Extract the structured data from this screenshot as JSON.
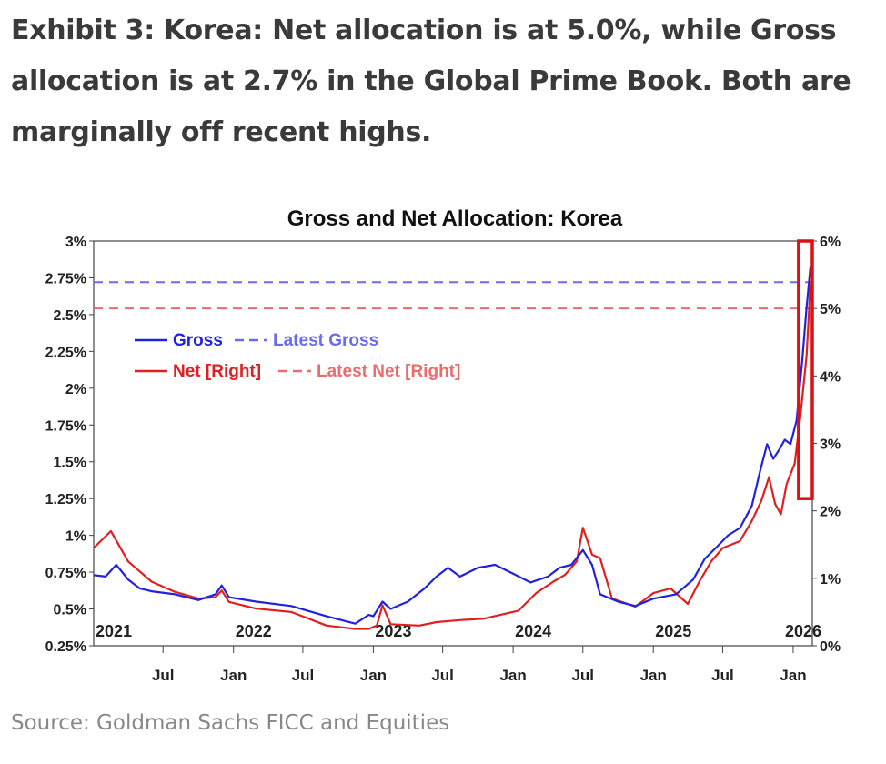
{
  "page": {
    "title": "Exhibit 3: Korea: Net allocation is at 5.0%, while Gross allocation is at 2.7% in the Global Prime Book. Both are marginally off recent highs.",
    "source": "Source: Goldman Sachs FICC and Equities"
  },
  "colors": {
    "gross": "#2222dd",
    "net": "#e02020",
    "gross_latest": "#6b6bf0",
    "net_latest": "#ee6b6b",
    "highlight": "#dd1111",
    "title_text": "#3a3a3a",
    "source_text": "#888888"
  },
  "chart_data": {
    "type": "line",
    "title": "Gross and Net Allocation: Korea",
    "x_axis": {
      "type": "date",
      "range": [
        "2021-01-01",
        "2026-02-20"
      ],
      "year_labels": [
        {
          "date": "2021-01-01",
          "label": "2021"
        },
        {
          "date": "2022-01-01",
          "label": "2022"
        },
        {
          "date": "2023-01-01",
          "label": "2023"
        },
        {
          "date": "2024-01-01",
          "label": "2024"
        },
        {
          "date": "2025-01-01",
          "label": "2025"
        },
        {
          "date": "2026-01-01",
          "label": "2026"
        }
      ],
      "month_labels": [
        {
          "date": "2021-07-01",
          "label": "Jul"
        },
        {
          "date": "2022-01-01",
          "label": "Jan"
        },
        {
          "date": "2022-07-01",
          "label": "Jul"
        },
        {
          "date": "2023-01-01",
          "label": "Jan"
        },
        {
          "date": "2023-07-01",
          "label": "Jul"
        },
        {
          "date": "2024-01-01",
          "label": "Jan"
        },
        {
          "date": "2024-07-01",
          "label": "Jul"
        },
        {
          "date": "2025-01-01",
          "label": "Jan"
        },
        {
          "date": "2025-07-01",
          "label": "Jul"
        },
        {
          "date": "2026-01-01",
          "label": "Jan"
        }
      ]
    },
    "y_left": {
      "range": [
        0.25,
        3
      ],
      "ticks": [
        "0.25%",
        "0.5%",
        "0.75%",
        "1%",
        "1.25%",
        "1.5%",
        "1.75%",
        "2%",
        "2.25%",
        "2.5%",
        "2.75%",
        "3%"
      ]
    },
    "y_right": {
      "range": [
        0,
        6
      ],
      "ticks": [
        "0%",
        "1%",
        "2%",
        "3%",
        "4%",
        "5%",
        "6%"
      ]
    },
    "legend": {
      "position": "top-left",
      "entries": [
        {
          "label": "Gross",
          "style": "solid",
          "color": "gross"
        },
        {
          "label": "Latest Gross",
          "style": "dashed",
          "color": "gross_latest"
        },
        {
          "label": "Net [Right]",
          "style": "solid",
          "color": "net"
        },
        {
          "label": "Latest Net [Right]",
          "style": "dashed",
          "color": "net_latest"
        }
      ]
    },
    "series": [
      {
        "name": "Gross",
        "axis": "left",
        "points": [
          [
            "2021-01-01",
            0.73
          ],
          [
            "2021-02-01",
            0.72
          ],
          [
            "2021-03-01",
            0.8
          ],
          [
            "2021-04-01",
            0.7
          ],
          [
            "2021-05-01",
            0.64
          ],
          [
            "2021-06-01",
            0.62
          ],
          [
            "2021-08-01",
            0.6
          ],
          [
            "2021-10-01",
            0.56
          ],
          [
            "2021-11-15",
            0.6
          ],
          [
            "2021-12-01",
            0.66
          ],
          [
            "2021-12-20",
            0.58
          ],
          [
            "2022-03-01",
            0.55
          ],
          [
            "2022-06-01",
            0.52
          ],
          [
            "2022-09-01",
            0.45
          ],
          [
            "2022-11-15",
            0.4
          ],
          [
            "2022-12-20",
            0.46
          ],
          [
            "2023-01-01",
            0.45
          ],
          [
            "2023-01-25",
            0.55
          ],
          [
            "2023-02-15",
            0.5
          ],
          [
            "2023-04-01",
            0.55
          ],
          [
            "2023-05-15",
            0.64
          ],
          [
            "2023-06-15",
            0.72
          ],
          [
            "2023-07-15",
            0.78
          ],
          [
            "2023-08-15",
            0.72
          ],
          [
            "2023-10-01",
            0.78
          ],
          [
            "2023-11-15",
            0.8
          ],
          [
            "2024-01-01",
            0.74
          ],
          [
            "2024-02-15",
            0.68
          ],
          [
            "2024-04-01",
            0.72
          ],
          [
            "2024-05-01",
            0.78
          ],
          [
            "2024-06-01",
            0.8
          ],
          [
            "2024-07-01",
            0.9
          ],
          [
            "2024-07-25",
            0.8
          ],
          [
            "2024-08-15",
            0.6
          ],
          [
            "2024-10-01",
            0.55
          ],
          [
            "2024-11-15",
            0.52
          ],
          [
            "2025-01-01",
            0.57
          ],
          [
            "2025-03-01",
            0.6
          ],
          [
            "2025-04-15",
            0.7
          ],
          [
            "2025-05-15",
            0.84
          ],
          [
            "2025-06-15",
            0.92
          ],
          [
            "2025-07-15",
            1.0
          ],
          [
            "2025-08-15",
            1.05
          ],
          [
            "2025-09-15",
            1.2
          ],
          [
            "2025-10-05",
            1.42
          ],
          [
            "2025-10-25",
            1.62
          ],
          [
            "2025-11-10",
            1.52
          ],
          [
            "2025-11-25",
            1.58
          ],
          [
            "2025-12-10",
            1.65
          ],
          [
            "2025-12-25",
            1.62
          ],
          [
            "2026-01-10",
            1.78
          ],
          [
            "2026-01-25",
            2.2
          ],
          [
            "2026-02-05",
            2.55
          ],
          [
            "2026-02-15",
            2.82
          ],
          [
            "2026-02-20",
            2.72
          ]
        ]
      },
      {
        "name": "Net [Right]",
        "axis": "right",
        "points": [
          [
            "2021-01-01",
            1.45
          ],
          [
            "2021-02-15",
            1.7
          ],
          [
            "2021-04-01",
            1.25
          ],
          [
            "2021-06-01",
            0.95
          ],
          [
            "2021-08-01",
            0.8
          ],
          [
            "2021-10-01",
            0.7
          ],
          [
            "2021-11-15",
            0.72
          ],
          [
            "2021-12-01",
            0.82
          ],
          [
            "2021-12-20",
            0.65
          ],
          [
            "2022-03-01",
            0.55
          ],
          [
            "2022-06-01",
            0.5
          ],
          [
            "2022-09-01",
            0.3
          ],
          [
            "2022-11-15",
            0.25
          ],
          [
            "2022-12-20",
            0.25
          ],
          [
            "2023-01-10",
            0.3
          ],
          [
            "2023-01-25",
            0.6
          ],
          [
            "2023-02-15",
            0.32
          ],
          [
            "2023-05-01",
            0.3
          ],
          [
            "2023-06-15",
            0.35
          ],
          [
            "2023-08-15",
            0.38
          ],
          [
            "2023-10-15",
            0.4
          ],
          [
            "2023-12-15",
            0.48
          ],
          [
            "2024-01-15",
            0.52
          ],
          [
            "2024-03-01",
            0.78
          ],
          [
            "2024-04-15",
            0.95
          ],
          [
            "2024-05-15",
            1.05
          ],
          [
            "2024-06-15",
            1.25
          ],
          [
            "2024-07-01",
            1.75
          ],
          [
            "2024-07-25",
            1.35
          ],
          [
            "2024-08-15",
            1.3
          ],
          [
            "2024-09-15",
            0.7
          ],
          [
            "2024-11-15",
            0.58
          ],
          [
            "2025-01-01",
            0.78
          ],
          [
            "2025-02-15",
            0.85
          ],
          [
            "2025-04-01",
            0.62
          ],
          [
            "2025-05-01",
            0.95
          ],
          [
            "2025-06-01",
            1.25
          ],
          [
            "2025-07-01",
            1.45
          ],
          [
            "2025-08-15",
            1.55
          ],
          [
            "2025-09-15",
            1.85
          ],
          [
            "2025-10-10",
            2.15
          ],
          [
            "2025-10-30",
            2.5
          ],
          [
            "2025-11-15",
            2.1
          ],
          [
            "2025-11-30",
            1.95
          ],
          [
            "2025-12-15",
            2.4
          ],
          [
            "2026-01-05",
            2.7
          ],
          [
            "2026-01-20",
            3.4
          ],
          [
            "2026-02-05",
            4.3
          ],
          [
            "2026-02-15",
            5.35
          ],
          [
            "2026-02-20",
            5.0
          ]
        ]
      }
    ],
    "reference_lines": [
      {
        "name": "Latest Gross",
        "axis": "left",
        "value": 2.72
      },
      {
        "name": "Latest Net [Right]",
        "axis": "right",
        "value": 5.0
      }
    ],
    "highlight_box": {
      "from": "2026-01-15",
      "to": "2026-02-28",
      "y_left": [
        1.25,
        3.0
      ]
    },
    "grid": false
  }
}
